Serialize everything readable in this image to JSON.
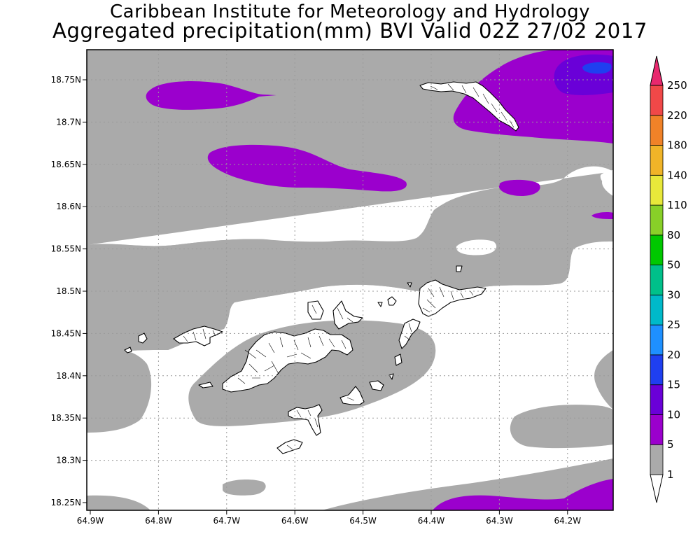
{
  "title": {
    "line1": "Caribbean Institute for Meteorology and Hydrology",
    "line2": "Aggregated precipitation(mm) BVI Valid 02Z 27/02 2017"
  },
  "axes": {
    "lon_ticks": [
      "64.9W",
      "64.8W",
      "64.7W",
      "64.6W",
      "64.5W",
      "64.4W",
      "64.3W",
      "64.2W"
    ],
    "lat_ticks": [
      "18.75N",
      "18.7N",
      "18.65N",
      "18.6N",
      "18.55N",
      "18.5N",
      "18.45N",
      "18.4N",
      "18.35N",
      "18.3N",
      "18.25N"
    ],
    "grid": true
  },
  "colorbar": {
    "levels": [
      "1",
      "5",
      "10",
      "15",
      "20",
      "25",
      "30",
      "50",
      "80",
      "110",
      "140",
      "180",
      "220",
      "250"
    ],
    "colors": [
      "#ffffff",
      "#aaaaaa",
      "#9b00cd",
      "#6a00d8",
      "#1f3ff0",
      "#1e90ff",
      "#00b9c9",
      "#00c08a",
      "#00c800",
      "#88d028",
      "#e8e83a",
      "#f0b428",
      "#f08228",
      "#f04848",
      "#e8286e"
    ]
  },
  "colors": {
    "background": "#ffffff",
    "gray_1_5mm": "#aaaaaa",
    "purple_5_10mm": "#9b00cd",
    "violet_10_15mm": "#6a00d8",
    "blue_15_20mm": "#1f3ff0"
  }
}
